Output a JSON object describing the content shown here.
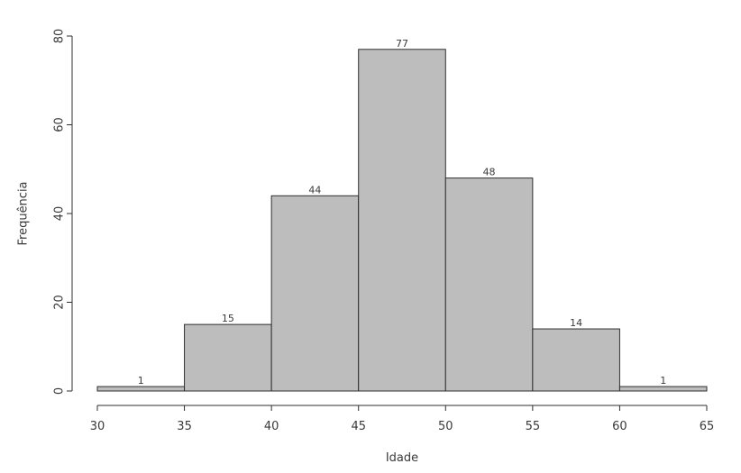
{
  "chart_data": {
    "type": "bar",
    "subtype": "histogram",
    "xlabel": "Idade",
    "ylabel": "Frequência",
    "bins": [
      {
        "start": 30,
        "end": 35,
        "count": 1
      },
      {
        "start": 35,
        "end": 40,
        "count": 15
      },
      {
        "start": 40,
        "end": 45,
        "count": 44
      },
      {
        "start": 45,
        "end": 50,
        "count": 77
      },
      {
        "start": 50,
        "end": 55,
        "count": 48
      },
      {
        "start": 55,
        "end": 60,
        "count": 14
      },
      {
        "start": 60,
        "end": 65,
        "count": 1
      }
    ],
    "data_labels": [
      "1",
      "15",
      "44",
      "77",
      "48",
      "14",
      "1"
    ],
    "x_ticks": [
      30,
      35,
      40,
      45,
      50,
      55,
      60,
      65
    ],
    "x_tick_labels": [
      "30",
      "35",
      "40",
      "45",
      "50",
      "55",
      "60",
      "65"
    ],
    "y_ticks": [
      0,
      20,
      40,
      60,
      80
    ],
    "y_tick_labels": [
      "0",
      "20",
      "40",
      "60",
      "80"
    ],
    "xlim": [
      30,
      65
    ],
    "ylim": [
      0,
      80
    ],
    "grid": false,
    "bar_color": "#bdbdbd",
    "edge_color": "#2f2f2f"
  }
}
